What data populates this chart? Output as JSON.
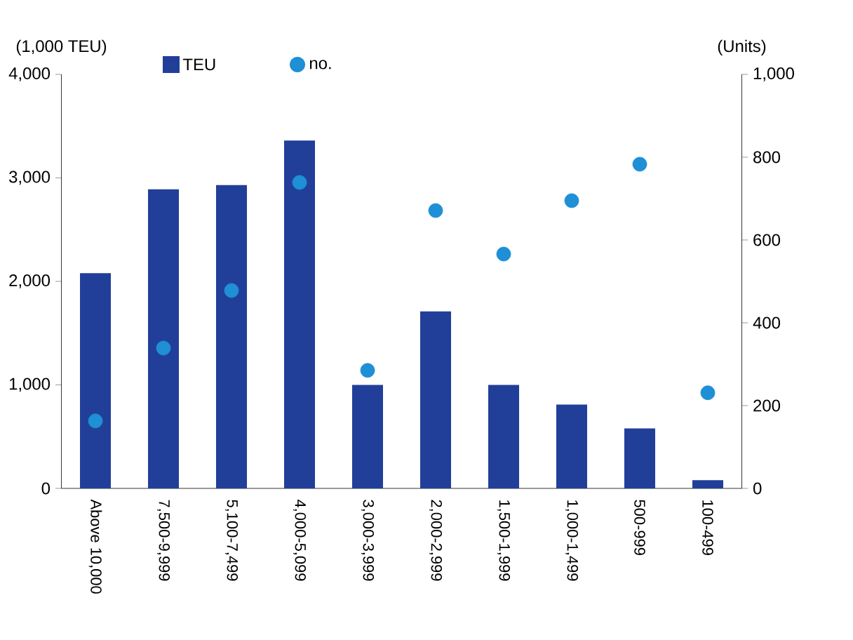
{
  "chart_data": {
    "type": "bar",
    "ylabel": "(1,000 TEU)",
    "y2label": "(Units)",
    "categories": [
      "Above 10,000",
      "7,500-9,999",
      "5,100-7,499",
      "4,000-5,099",
      "3,000-3,999",
      "2,000-2,999",
      "1,500-1,999",
      "1,000-1,499",
      "500-999",
      "100-499"
    ],
    "series": [
      {
        "name": "TEU",
        "color": "#213f99",
        "values": [
          2080,
          2890,
          2930,
          3360,
          1000,
          1710,
          1000,
          810,
          580,
          80
        ]
      },
      {
        "name": "no.",
        "type": "scatter",
        "axis": "y2",
        "marker": "circle",
        "color": "#1f8fd6",
        "values": [
          163,
          339,
          478,
          739,
          285,
          671,
          566,
          695,
          783,
          231
        ]
      }
    ],
    "ylim": [
      0,
      4000
    ],
    "yticks": [
      {
        "value": 0,
        "label": "0"
      },
      {
        "value": 1000,
        "label": "1,000"
      },
      {
        "value": 2000,
        "label": "2,000"
      },
      {
        "value": 3000,
        "label": "3,000"
      },
      {
        "value": 4000,
        "label": "4,000"
      }
    ],
    "y2lim": [
      0,
      1000
    ],
    "y2ticks": [
      {
        "value": 0,
        "label": "0"
      },
      {
        "value": 200,
        "label": "200"
      },
      {
        "value": 400,
        "label": "400"
      },
      {
        "value": 600,
        "label": "600"
      },
      {
        "value": 800,
        "label": "800"
      },
      {
        "value": 1000,
        "label": "1,000"
      }
    ],
    "legend": "top left",
    "grid": false
  }
}
